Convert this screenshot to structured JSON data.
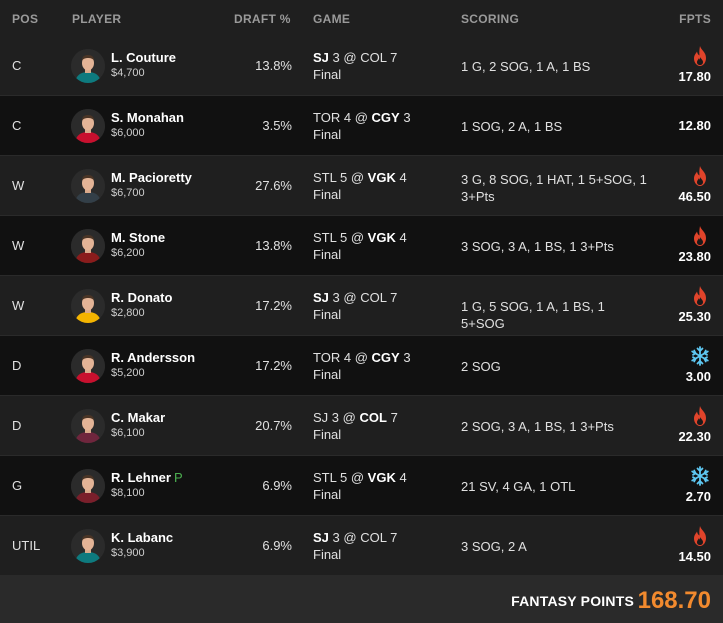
{
  "header": {
    "pos": "POS",
    "player": "PLAYER",
    "draft": "DRAFT %",
    "game": "GAME",
    "scoring": "SCORING",
    "fpts": "FPTS"
  },
  "colors": {
    "accent_orange": "#f28a2e",
    "hot_icon": "#e0442b",
    "cold_icon": "#5ec8f2",
    "tag_green": "#4caf50"
  },
  "rows": [
    {
      "pos": "C",
      "name": "L. Couture",
      "tag": "",
      "salary": "$4,700",
      "draft": "13.8%",
      "game_away": "SJ",
      "away_score": "3",
      "at": "@",
      "game_home": "COL",
      "home_score": "7",
      "bold": "away",
      "status": "Final",
      "scoring": "1 G, 2 SOG, 1 A, 1 BS",
      "fpts": "17.80",
      "icon": "fire-icon",
      "jersey": "#0e7a7e"
    },
    {
      "pos": "C",
      "name": "S. Monahan",
      "tag": "",
      "salary": "$6,000",
      "draft": "3.5%",
      "game_away": "TOR",
      "away_score": "4",
      "at": "@",
      "game_home": "CGY",
      "home_score": "3",
      "bold": "home",
      "status": "Final",
      "scoring": "1 SOG, 2 A, 1 BS",
      "fpts": "12.80",
      "icon": "",
      "jersey": "#c8102e"
    },
    {
      "pos": "W",
      "name": "M. Pacioretty",
      "tag": "",
      "salary": "$6,700",
      "draft": "27.6%",
      "game_away": "STL",
      "away_score": "5",
      "at": "@",
      "game_home": "VGK",
      "home_score": "4",
      "bold": "home",
      "status": "Final",
      "scoring": "3 G, 8 SOG, 1 HAT, 1 5+SOG, 1 3+Pts",
      "fpts": "46.50",
      "icon": "fire-icon",
      "jersey": "#333f48"
    },
    {
      "pos": "W",
      "name": "M. Stone",
      "tag": "",
      "salary": "$6,200",
      "draft": "13.8%",
      "game_away": "STL",
      "away_score": "5",
      "at": "@",
      "game_home": "VGK",
      "home_score": "4",
      "bold": "home",
      "status": "Final",
      "scoring": "3 SOG, 3 A, 1 BS, 1 3+Pts",
      "fpts": "23.80",
      "icon": "fire-icon",
      "jersey": "#8a1c1c"
    },
    {
      "pos": "W",
      "name": "R. Donato",
      "tag": "",
      "salary": "$2,800",
      "draft": "17.2%",
      "game_away": "SJ",
      "away_score": "3",
      "at": "@",
      "game_home": "COL",
      "home_score": "7",
      "bold": "away",
      "status": "Final",
      "scoring": "1 G, 5 SOG, 1 A, 1 BS, 1 5+SOG",
      "fpts": "25.30",
      "icon": "fire-icon",
      "jersey": "#f4b400"
    },
    {
      "pos": "D",
      "name": "R. Andersson",
      "tag": "",
      "salary": "$5,200",
      "draft": "17.2%",
      "game_away": "TOR",
      "away_score": "4",
      "at": "@",
      "game_home": "CGY",
      "home_score": "3",
      "bold": "home",
      "status": "Final",
      "scoring": "2 SOG",
      "fpts": "3.00",
      "icon": "snowflake-icon",
      "jersey": "#c8102e"
    },
    {
      "pos": "D",
      "name": "C. Makar",
      "tag": "",
      "salary": "$6,100",
      "draft": "20.7%",
      "game_away": "SJ",
      "away_score": "3",
      "at": "@",
      "game_home": "COL",
      "home_score": "7",
      "bold": "home",
      "status": "Final",
      "scoring": "2 SOG, 3 A, 1 BS, 1 3+Pts",
      "fpts": "22.30",
      "icon": "fire-icon",
      "jersey": "#6f263d"
    },
    {
      "pos": "G",
      "name": "R. Lehner",
      "tag": "P",
      "salary": "$8,100",
      "draft": "6.9%",
      "game_away": "STL",
      "away_score": "5",
      "at": "@",
      "game_home": "VGK",
      "home_score": "4",
      "bold": "home",
      "status": "Final",
      "scoring": "21 SV, 4 GA, 1 OTL",
      "fpts": "2.70",
      "icon": "snowflake-icon",
      "jersey": "#7a1f2b"
    },
    {
      "pos": "UTIL",
      "name": "K. Labanc",
      "tag": "",
      "salary": "$3,900",
      "draft": "6.9%",
      "game_away": "SJ",
      "away_score": "3",
      "at": "@",
      "game_home": "COL",
      "home_score": "7",
      "bold": "away",
      "status": "Final",
      "scoring": "3 SOG, 2 A",
      "fpts": "14.50",
      "icon": "fire-icon",
      "jersey": "#0e7a7e"
    }
  ],
  "footer": {
    "label": "FANTASY POINTS",
    "total": "168.70"
  }
}
